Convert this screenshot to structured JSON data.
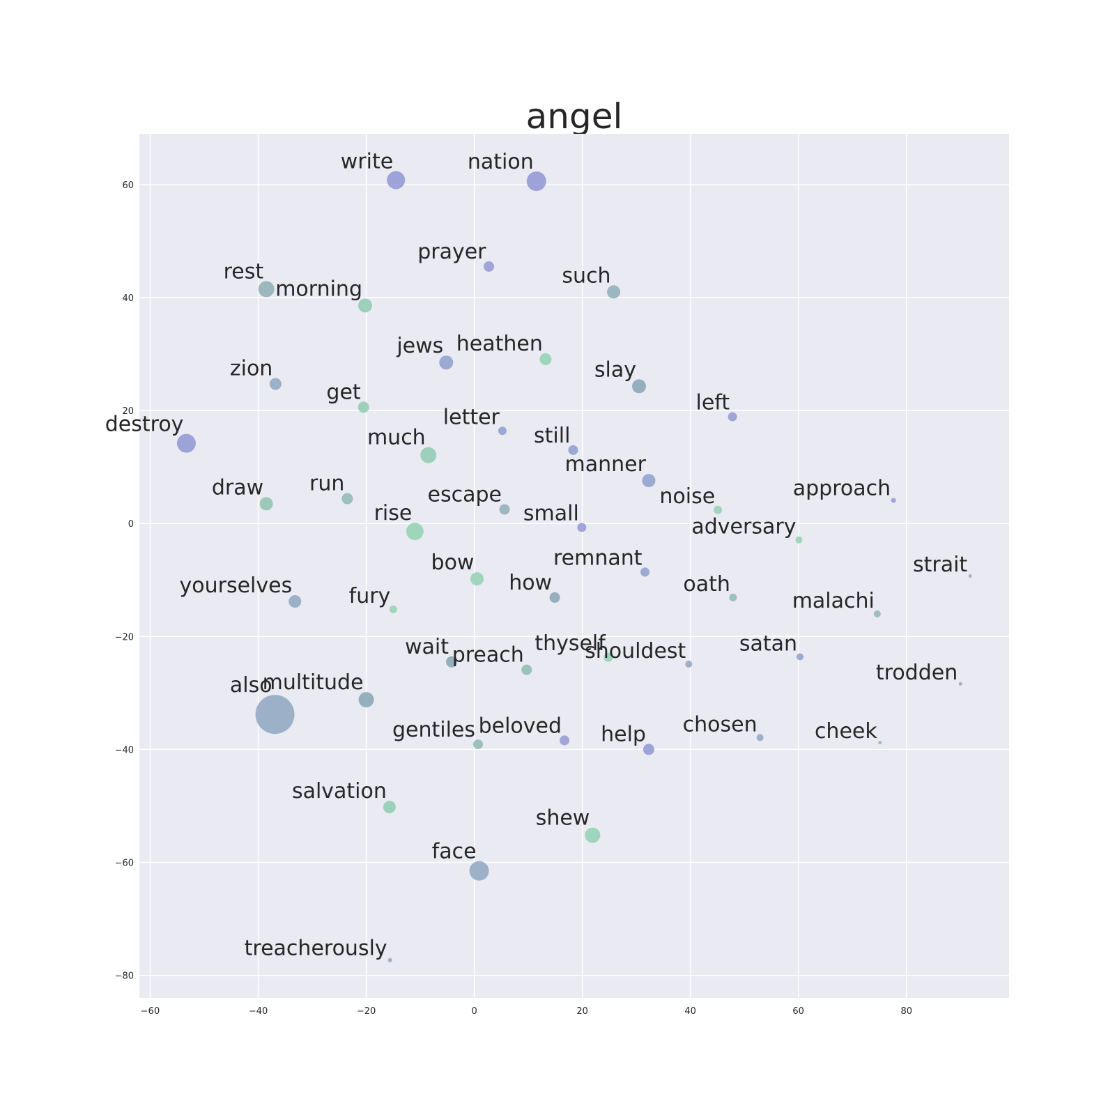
{
  "chart_data": {
    "type": "scatter",
    "title": "angel",
    "xlabel": "",
    "ylabel": "",
    "xlim": [
      -62,
      99
    ],
    "ylim": [
      -84,
      69
    ],
    "x_ticks": [
      -60,
      -40,
      -20,
      0,
      20,
      40,
      60,
      80
    ],
    "y_ticks": [
      -80,
      -60,
      -40,
      -20,
      0,
      20,
      40,
      60
    ],
    "x_tick_labels": [
      "−60",
      "−40",
      "−20",
      "0",
      "20",
      "40",
      "60",
      "80"
    ],
    "y_tick_labels": [
      "−80",
      "−60",
      "−40",
      "−20",
      "0",
      "20",
      "40",
      "60"
    ],
    "grid": true,
    "background_color": "#eaeaf2",
    "grid_color": "#ffffff",
    "points": [
      {
        "label": "write",
        "x": -14.5,
        "y": 60.8,
        "size": 13,
        "color": "#8f95d4"
      },
      {
        "label": "nation",
        "x": 11.5,
        "y": 60.6,
        "size": 14,
        "color": "#8f95d4"
      },
      {
        "label": "prayer",
        "x": 2.7,
        "y": 45.5,
        "size": 7.5,
        "color": "#9498d2"
      },
      {
        "label": "rest",
        "x": -38.5,
        "y": 41.5,
        "size": 11.5,
        "color": "#8eaeb6"
      },
      {
        "label": "such",
        "x": 25.8,
        "y": 41.0,
        "size": 9.5,
        "color": "#8eaeb6"
      },
      {
        "label": "morning",
        "x": -20.2,
        "y": 38.6,
        "size": 10,
        "color": "#8fcbb0"
      },
      {
        "label": "jews",
        "x": -5.2,
        "y": 28.5,
        "size": 10,
        "color": "#8c9fcb"
      },
      {
        "label": "heathen",
        "x": 13.2,
        "y": 29.1,
        "size": 8.5,
        "color": "#92d2b2"
      },
      {
        "label": "zion",
        "x": -36.8,
        "y": 24.7,
        "size": 8.5,
        "color": "#8ea6c0"
      },
      {
        "label": "slay",
        "x": 30.5,
        "y": 24.3,
        "size": 10,
        "color": "#86a4b4"
      },
      {
        "label": "get",
        "x": -20.5,
        "y": 20.6,
        "size": 8,
        "color": "#8fcbb0"
      },
      {
        "label": "left",
        "x": 47.8,
        "y": 18.9,
        "size": 6.5,
        "color": "#9498d2"
      },
      {
        "label": "letter",
        "x": 5.2,
        "y": 16.4,
        "size": 6,
        "color": "#8c9fcb"
      },
      {
        "label": "destroy",
        "x": -53.3,
        "y": 14.2,
        "size": 13.5,
        "color": "#8f95d4"
      },
      {
        "label": "still",
        "x": 18.3,
        "y": 13.0,
        "size": 7,
        "color": "#8c9fcb"
      },
      {
        "label": "much",
        "x": -8.5,
        "y": 12.1,
        "size": 11.5,
        "color": "#8fcbb0"
      },
      {
        "label": "manner",
        "x": 32.3,
        "y": 7.6,
        "size": 9.5,
        "color": "#8c9fcb"
      },
      {
        "label": "draw",
        "x": -38.5,
        "y": 3.5,
        "size": 9.5,
        "color": "#8dc2b0"
      },
      {
        "label": "run",
        "x": -23.5,
        "y": 4.4,
        "size": 8,
        "color": "#8dbaaf"
      },
      {
        "label": "escape",
        "x": 5.6,
        "y": 2.5,
        "size": 7.5,
        "color": "#8eaeb6"
      },
      {
        "label": "noise",
        "x": 45.1,
        "y": 2.4,
        "size": 6,
        "color": "#92d2b2"
      },
      {
        "label": "approach",
        "x": 77.6,
        "y": 4.1,
        "size": 3.5,
        "color": "#9498d2"
      },
      {
        "label": "small",
        "x": 19.9,
        "y": -0.7,
        "size": 6.5,
        "color": "#9498d2"
      },
      {
        "label": "rise",
        "x": -11.0,
        "y": -1.4,
        "size": 12.5,
        "color": "#92d2b2"
      },
      {
        "label": "adversary",
        "x": 60.1,
        "y": -2.9,
        "size": 5,
        "color": "#92d2b2"
      },
      {
        "label": "bow",
        "x": 0.5,
        "y": -9.8,
        "size": 9.5,
        "color": "#92d2b2"
      },
      {
        "label": "remnant",
        "x": 31.6,
        "y": -8.6,
        "size": 6.5,
        "color": "#8c9fcb"
      },
      {
        "label": "strait",
        "x": 91.8,
        "y": -9.3,
        "size": 2.5,
        "color": "#8eaeb6"
      },
      {
        "label": "how",
        "x": 14.9,
        "y": -13.1,
        "size": 7.5,
        "color": "#86a4b4"
      },
      {
        "label": "oath",
        "x": 47.9,
        "y": -13.1,
        "size": 5.5,
        "color": "#8dbaaf"
      },
      {
        "label": "yourselves",
        "x": -33.2,
        "y": -13.8,
        "size": 9,
        "color": "#8ea6c0"
      },
      {
        "label": "fury",
        "x": -15.0,
        "y": -15.2,
        "size": 5.5,
        "color": "#92d2b2"
      },
      {
        "label": "malachi",
        "x": 74.6,
        "y": -16.0,
        "size": 5,
        "color": "#8dbaaf"
      },
      {
        "label": "satan",
        "x": 60.3,
        "y": -23.6,
        "size": 5,
        "color": "#8c9fcb"
      },
      {
        "label": "thyself",
        "x": 24.8,
        "y": -23.7,
        "size": 6.5,
        "color": "#92d2b2"
      },
      {
        "label": "shouldest",
        "x": 39.7,
        "y": -24.9,
        "size": 5,
        "color": "#8ea6c0"
      },
      {
        "label": "wait",
        "x": -4.2,
        "y": -24.5,
        "size": 8,
        "color": "#86a4b4"
      },
      {
        "label": "preach",
        "x": 9.7,
        "y": -25.9,
        "size": 7.5,
        "color": "#8dbaaf"
      },
      {
        "label": "trodden",
        "x": 90.0,
        "y": -28.4,
        "size": 2.5,
        "color": "#8ea6c0"
      },
      {
        "label": "multitude",
        "x": -20.0,
        "y": -31.2,
        "size": 11,
        "color": "#86a4b4"
      },
      {
        "label": "also",
        "x": -36.9,
        "y": -33.8,
        "size": 28,
        "color": "#8ea6c0"
      },
      {
        "label": "chosen",
        "x": 52.9,
        "y": -37.9,
        "size": 5,
        "color": "#8ea6c0"
      },
      {
        "label": "cheek",
        "x": 75.1,
        "y": -38.8,
        "size": 2.5,
        "color": "#8dbaaf"
      },
      {
        "label": "beloved",
        "x": 16.7,
        "y": -38.4,
        "size": 7,
        "color": "#9498d2"
      },
      {
        "label": "gentiles",
        "x": 0.7,
        "y": -39.1,
        "size": 7,
        "color": "#8dbaaf"
      },
      {
        "label": "help",
        "x": 32.3,
        "y": -40.0,
        "size": 8,
        "color": "#8f95d4"
      },
      {
        "label": "salvation",
        "x": -15.7,
        "y": -50.2,
        "size": 9,
        "color": "#8fcbb0"
      },
      {
        "label": "shew",
        "x": 21.9,
        "y": -55.2,
        "size": 11,
        "color": "#92d2b2"
      },
      {
        "label": "face",
        "x": 0.9,
        "y": -61.5,
        "size": 14,
        "color": "#8ea6c0"
      },
      {
        "label": "treacherously",
        "x": -15.6,
        "y": -77.3,
        "size": 3,
        "color": "#8ea6c0"
      }
    ]
  }
}
